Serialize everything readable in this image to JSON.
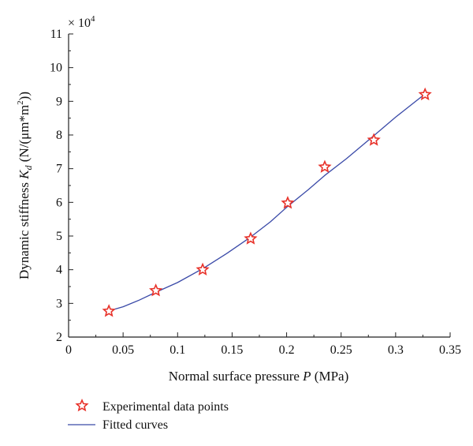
{
  "chart_data": {
    "type": "scatter",
    "xlabel_prefix": "Normal surface pressure ",
    "xlabel_var": "P",
    "xlabel_suffix": " (MPa)",
    "ylabel_prefix": "Dynamic stiffness ",
    "ylabel_var": "K",
    "ylabel_sub": "d",
    "ylabel_suffix": " (N/(μm*m",
    "ylabel_sup": "2",
    "ylabel_end": "))",
    "y_multiplier": "× 10",
    "y_multiplier_exp": "4",
    "xlim": [
      0,
      0.35
    ],
    "ylim": [
      2,
      11
    ],
    "x_ticks": [
      "0",
      "0.05",
      "0.1",
      "0.15",
      "0.2",
      "0.25",
      "0.3",
      "0.35"
    ],
    "y_ticks": [
      "2",
      "3",
      "4",
      "5",
      "6",
      "7",
      "8",
      "9",
      "10",
      "11"
    ],
    "series": [
      {
        "name": "Experimental data points",
        "kind": "scatter",
        "marker": "star",
        "color": "#e8322a",
        "x": [
          0.037,
          0.08,
          0.123,
          0.167,
          0.201,
          0.235,
          0.28,
          0.327
        ],
        "y": [
          2.77,
          3.38,
          4.0,
          4.92,
          5.98,
          7.05,
          7.85,
          9.2
        ]
      },
      {
        "name": "Fitted curves",
        "kind": "line",
        "color": "#3a4aa8",
        "x": [
          0.037,
          0.05,
          0.065,
          0.08,
          0.1,
          0.123,
          0.145,
          0.167,
          0.185,
          0.201,
          0.22,
          0.235,
          0.255,
          0.28,
          0.3,
          0.327
        ],
        "y": [
          2.78,
          2.9,
          3.1,
          3.33,
          3.62,
          4.03,
          4.48,
          4.97,
          5.42,
          5.88,
          6.38,
          6.8,
          7.3,
          7.98,
          8.53,
          9.22
        ]
      }
    ],
    "legend_position": "bottom-left"
  }
}
